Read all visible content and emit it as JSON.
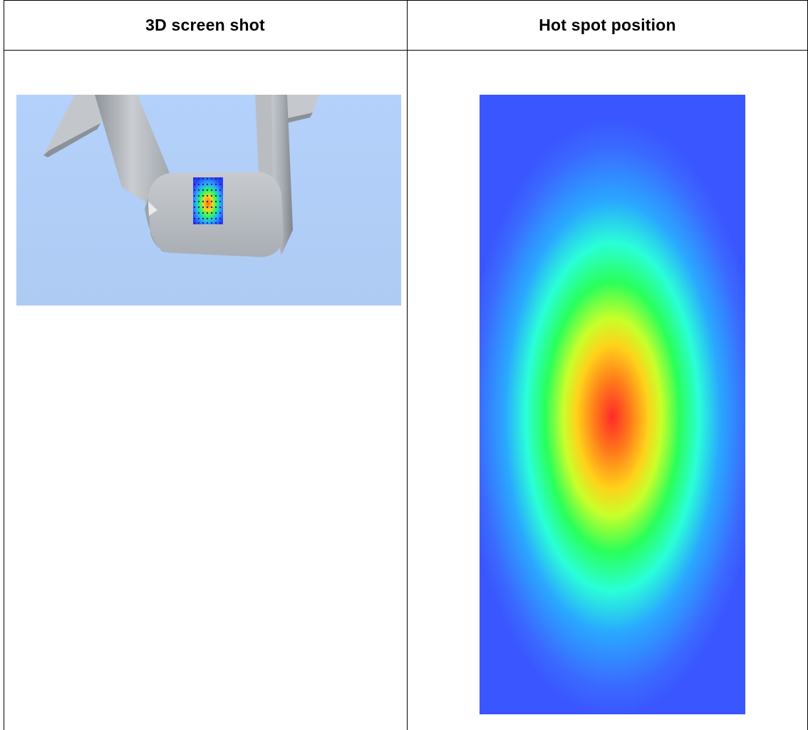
{
  "table": {
    "headers": {
      "left": "3D screen shot",
      "right": "Hot spot position"
    }
  },
  "images": {
    "screenshot_3d": {
      "icon": "3d-model-render",
      "background_color": "#b1cff8",
      "part_color": "#b4b8bd"
    },
    "hotspot_map": {
      "icon": "heatmap",
      "colors": [
        "#ff2a2a",
        "#ff7a1a",
        "#ffd21a",
        "#c8ff2a",
        "#2aff5a",
        "#2affd8",
        "#2aa8ff",
        "#3a5aff"
      ]
    }
  }
}
